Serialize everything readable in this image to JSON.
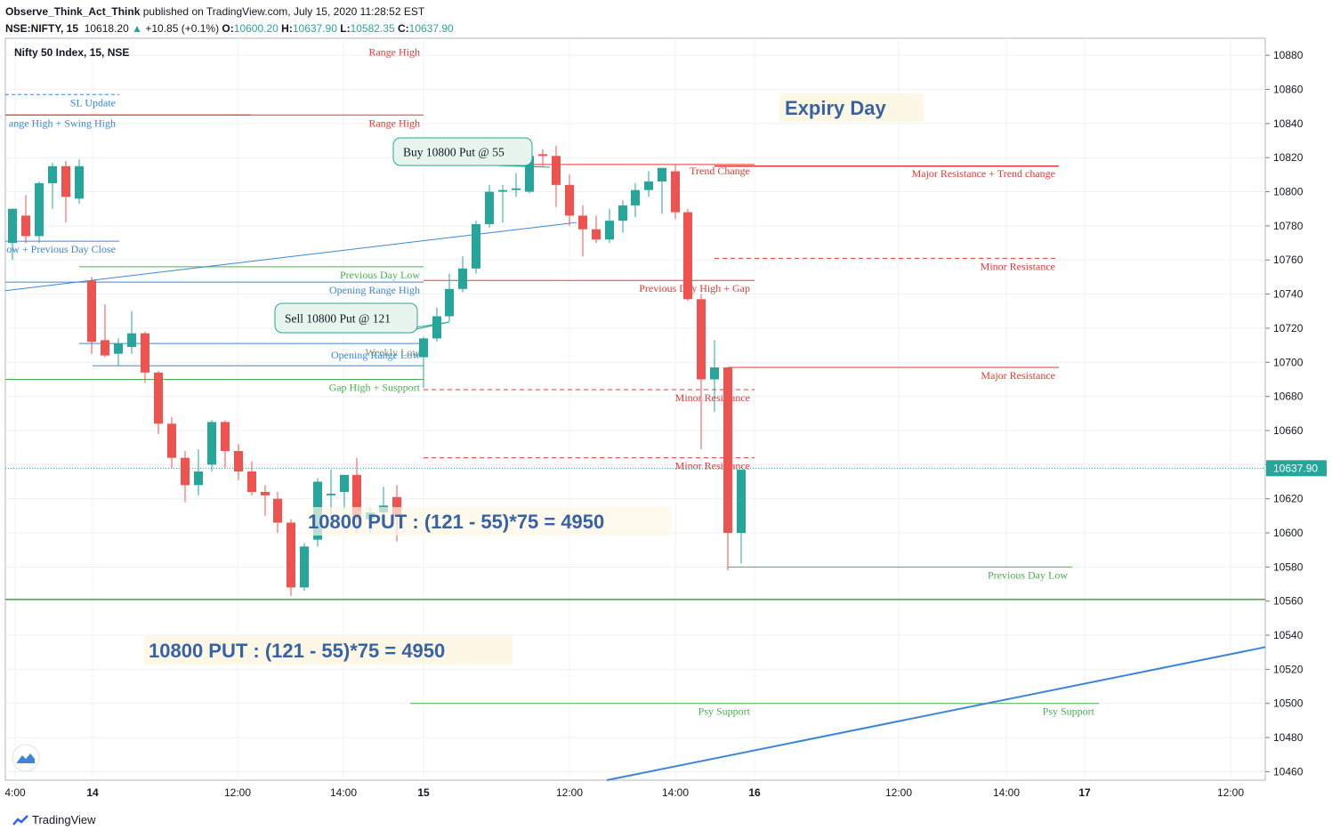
{
  "header": {
    "author": "Observe_Think_Act_Think",
    "published": "published on TradingView.com, July 15, 2020 11:28:52 EST",
    "symbol": "NSE:NIFTY, 15",
    "last": "10618.20",
    "change": "+10.85 (+0.1%)",
    "o_label": "O:",
    "o": "10600.20",
    "h_label": "H:",
    "h": "10637.90",
    "l_label": "L:",
    "l": "10582.35",
    "c_label": "C:",
    "c": "10637.90"
  },
  "series_name": "Nifty 50 Index, 15, NSE",
  "footer": {
    "brand": "TradingView"
  },
  "colors": {
    "up": "#26a69a",
    "down": "#ef5350",
    "blue": "#2962ff",
    "trend": "#3d86d6",
    "green_line": "#4caf50",
    "red_line": "#e53935",
    "text_blue": "#3762a6"
  },
  "chart_data": {
    "type": "candlestick",
    "ylim": [
      10455,
      10890
    ],
    "price_ticks": [
      10460,
      10480,
      10500,
      10520,
      10540,
      10560,
      10580,
      10600,
      10620,
      10640,
      10660,
      10680,
      10700,
      10720,
      10740,
      10760,
      10780,
      10800,
      10820,
      10840,
      10860,
      10880
    ],
    "last_price_label": "10637.90",
    "time_labels": [
      "4:00",
      "14",
      "12:00",
      "14:00",
      "15",
      "12:00",
      "14:00",
      "16",
      "12:00",
      "14:00",
      "17",
      "12:00"
    ],
    "bold_time_labels": [
      "14",
      "15",
      "16",
      "17"
    ],
    "candles": [
      {
        "o": 10770,
        "h": 10790,
        "l": 10760,
        "c": 10790
      },
      {
        "o": 10786,
        "h": 10798,
        "l": 10770,
        "c": 10774
      },
      {
        "o": 10774,
        "h": 10806,
        "l": 10770,
        "c": 10805
      },
      {
        "o": 10805,
        "h": 10817,
        "l": 10790,
        "c": 10815
      },
      {
        "o": 10815,
        "h": 10818,
        "l": 10782,
        "c": 10797
      },
      {
        "o": 10796,
        "h": 10819,
        "l": 10793,
        "c": 10815
      },
      {
        "o": 10748,
        "h": 10750,
        "l": 10705,
        "c": 10712
      },
      {
        "o": 10713,
        "h": 10734,
        "l": 10703,
        "c": 10704
      },
      {
        "o": 10705,
        "h": 10714,
        "l": 10698,
        "c": 10711
      },
      {
        "o": 10709,
        "h": 10730,
        "l": 10705,
        "c": 10717
      },
      {
        "o": 10717,
        "h": 10718,
        "l": 10688,
        "c": 10694
      },
      {
        "o": 10694,
        "h": 10695,
        "l": 10658,
        "c": 10664
      },
      {
        "o": 10664,
        "h": 10668,
        "l": 10638,
        "c": 10644
      },
      {
        "o": 10644,
        "h": 10648,
        "l": 10618,
        "c": 10628
      },
      {
        "o": 10628,
        "h": 10649,
        "l": 10622,
        "c": 10636
      },
      {
        "o": 10640,
        "h": 10666,
        "l": 10636,
        "c": 10665
      },
      {
        "o": 10665,
        "h": 10666,
        "l": 10638,
        "c": 10648
      },
      {
        "o": 10648,
        "h": 10652,
        "l": 10631,
        "c": 10636
      },
      {
        "o": 10636,
        "h": 10642,
        "l": 10622,
        "c": 10624
      },
      {
        "o": 10624,
        "h": 10628,
        "l": 10610,
        "c": 10622
      },
      {
        "o": 10620,
        "h": 10624,
        "l": 10600,
        "c": 10606
      },
      {
        "o": 10606,
        "h": 10608,
        "l": 10563,
        "c": 10568
      },
      {
        "o": 10568,
        "h": 10594,
        "l": 10566,
        "c": 10592
      },
      {
        "o": 10596,
        "h": 10632,
        "l": 10592,
        "c": 10630
      },
      {
        "o": 10622,
        "h": 10637,
        "l": 10607,
        "c": 10623
      },
      {
        "o": 10624,
        "h": 10634,
        "l": 10614,
        "c": 10634
      },
      {
        "o": 10634,
        "h": 10644,
        "l": 10600,
        "c": 10608
      },
      {
        "o": 10608,
        "h": 10615,
        "l": 10600,
        "c": 10612
      },
      {
        "o": 10612,
        "h": 10627,
        "l": 10604,
        "c": 10616
      },
      {
        "o": 10621,
        "h": 10628,
        "l": 10595,
        "c": 10610
      },
      {
        "o": 10703,
        "h": 10715,
        "l": 10685,
        "c": 10714
      },
      {
        "o": 10714,
        "h": 10732,
        "l": 10712,
        "c": 10727
      },
      {
        "o": 10727,
        "h": 10752,
        "l": 10724,
        "c": 10743
      },
      {
        "o": 10743,
        "h": 10762,
        "l": 10741,
        "c": 10755
      },
      {
        "o": 10755,
        "h": 10783,
        "l": 10752,
        "c": 10781
      },
      {
        "o": 10781,
        "h": 10804,
        "l": 10779,
        "c": 10800
      },
      {
        "o": 10800,
        "h": 10804,
        "l": 10782,
        "c": 10801
      },
      {
        "o": 10801,
        "h": 10811,
        "l": 10797,
        "c": 10802
      },
      {
        "o": 10800,
        "h": 10825,
        "l": 10799,
        "c": 10821
      },
      {
        "o": 10822,
        "h": 10825,
        "l": 10815,
        "c": 10821
      },
      {
        "o": 10821,
        "h": 10827,
        "l": 10791,
        "c": 10804
      },
      {
        "o": 10804,
        "h": 10810,
        "l": 10780,
        "c": 10786
      },
      {
        "o": 10786,
        "h": 10792,
        "l": 10762,
        "c": 10778
      },
      {
        "o": 10778,
        "h": 10786,
        "l": 10770,
        "c": 10772
      },
      {
        "o": 10772,
        "h": 10790,
        "l": 10770,
        "c": 10783
      },
      {
        "o": 10783,
        "h": 10795,
        "l": 10776,
        "c": 10792
      },
      {
        "o": 10792,
        "h": 10805,
        "l": 10785,
        "c": 10801
      },
      {
        "o": 10801,
        "h": 10812,
        "l": 10797,
        "c": 10806
      },
      {
        "o": 10806,
        "h": 10814,
        "l": 10787,
        "c": 10814
      },
      {
        "o": 10812,
        "h": 10816,
        "l": 10784,
        "c": 10788
      },
      {
        "o": 10788,
        "h": 10790,
        "l": 10736,
        "c": 10737
      },
      {
        "o": 10737,
        "h": 10740,
        "l": 10649,
        "c": 10690
      },
      {
        "o": 10690,
        "h": 10713,
        "l": 10671,
        "c": 10697
      },
      {
        "o": 10697,
        "h": 10697,
        "l": 10578,
        "c": 10600
      },
      {
        "o": 10600,
        "h": 10637,
        "l": 10582,
        "c": 10637
      }
    ]
  },
  "annotations": {
    "range_high_top": "Range High",
    "range_high": "Range High",
    "sl_update": "SL Update",
    "range_swing": "ange High + Swing High",
    "prev_day_close": "ow + Previous Day Close",
    "prev_day_low_14": "Previous Day Low",
    "orh": "Opening Range High",
    "weekly_low": "Weekly Low",
    "orl": "Opening Range Low",
    "gap_high": "Gap High + Suspport",
    "trend_change": "Trend Change",
    "major_res_trend": "Major Resistance + Trend change",
    "minor_res_1": "Minor Resistance",
    "pdh_gap": "Previous Day High + Gap",
    "major_res": "Major Resistance",
    "minor_res_2": "Minor Resistance",
    "minor_res_3": "Minor Resistance",
    "prev_day_low_16": "Previous Day Low",
    "psy_support_1": "Psy Support",
    "psy_support_2": "Psy Support",
    "buy_callout": "Buy 10800 Put @ 55",
    "sell_callout": "Sell 10800 Put @ 121",
    "expiry": "Expiry Day",
    "pnl_1": "10800 PUT : (121 - 55)*75 = 4950",
    "pnl_2": "10800 PUT : (121 - 55)*75 = 4950"
  }
}
